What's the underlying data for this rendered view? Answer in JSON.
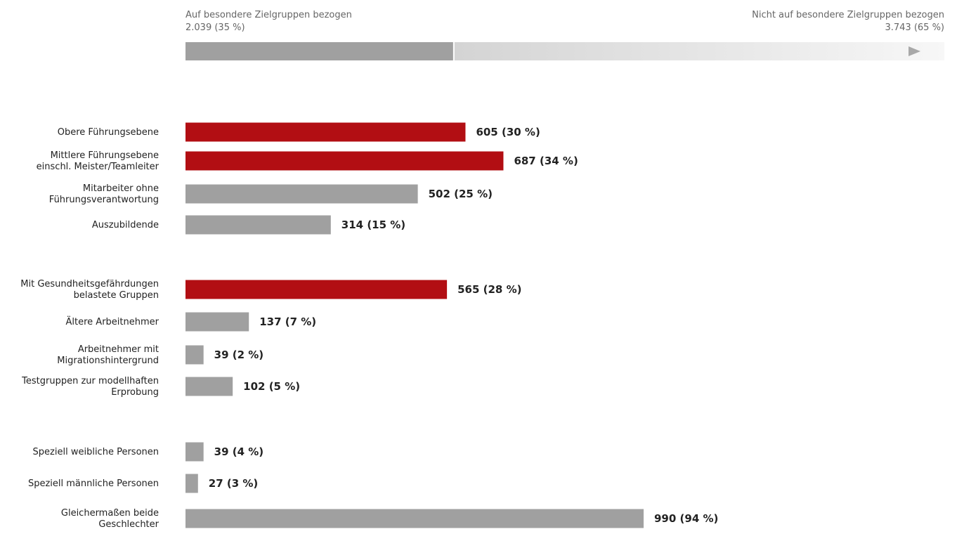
{
  "chart_data": [
    {
      "type": "bar",
      "orientation": "stacked-horizontal",
      "segments": [
        {
          "name": "Auf besondere Zielgruppen bezogen",
          "value_label": "2.039 (35 %)",
          "value": 2039,
          "percent": 35,
          "color": "#a0a0a0"
        },
        {
          "name": "Nicht auf besondere Zielgruppen bezogen",
          "value_label": "3.743 (65 %)",
          "value": 3743,
          "percent": 65,
          "color": "#d8d8d8"
        }
      ],
      "arrow_icon": "play-triangle-icon"
    },
    {
      "type": "bar",
      "orientation": "horizontal",
      "colors": {
        "highlight": "#b20e13",
        "default": "#a0a0a0"
      },
      "xlim": [
        0,
        1050
      ],
      "groups": [
        {
          "items": [
            {
              "label_lines": [
                "Obere Führungsebene"
              ],
              "value": 605,
              "value_label": "605 (30 %)",
              "highlight": true
            },
            {
              "label_lines": [
                "Mittlere Führungsebene",
                "einschl. Meister/Teamleiter"
              ],
              "value": 687,
              "value_label": "687 (34 %)",
              "highlight": true
            },
            {
              "label_lines": [
                "Mitarbeiter ohne",
                "Führungsverantwortung"
              ],
              "value": 502,
              "value_label": "502 (25 %)",
              "highlight": false
            },
            {
              "label_lines": [
                "Auszubildende"
              ],
              "value": 314,
              "value_label": "314 (15 %)",
              "highlight": false
            }
          ]
        },
        {
          "items": [
            {
              "label_lines": [
                "Mit Gesundheitsgefährdungen",
                "belastete Gruppen"
              ],
              "value": 565,
              "value_label": "565 (28 %)",
              "highlight": true
            },
            {
              "label_lines": [
                "Ältere Arbeitnehmer"
              ],
              "value": 137,
              "value_label": "137 (7 %)",
              "highlight": false
            },
            {
              "label_lines": [
                "Arbeitnehmer mit",
                "Migrationshintergrund"
              ],
              "value": 39,
              "value_label": "39 (2 %)",
              "highlight": false
            },
            {
              "label_lines": [
                "Testgruppen zur modellhaften",
                "Erprobung"
              ],
              "value": 102,
              "value_label": "102 (5 %)",
              "highlight": false
            }
          ]
        },
        {
          "items": [
            {
              "label_lines": [
                "Speziell weibliche Personen"
              ],
              "value": 39,
              "value_label": "39 (4 %)",
              "highlight": false
            },
            {
              "label_lines": [
                "Speziell männliche Personen"
              ],
              "value": 27,
              "value_label": "27 (3 %)",
              "highlight": false
            },
            {
              "label_lines": [
                "Gleichermaßen beide",
                "Geschlechter"
              ],
              "value": 990,
              "value_label": "990 (94 %)",
              "highlight": false
            }
          ]
        }
      ]
    }
  ]
}
